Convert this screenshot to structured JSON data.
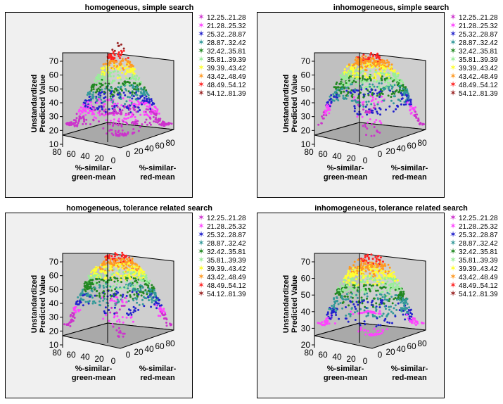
{
  "legend_colors": [
    "#cc33cc",
    "#ff44ff",
    "#2222cc",
    "#339999",
    "#228822",
    "#99ee99",
    "#ffff33",
    "#ff9922",
    "#ff2222",
    "#992222"
  ],
  "chart_data": [
    {
      "type": "scatter",
      "title": "homogeneous, simple search",
      "zlabel": [
        "Unstandardized",
        "Predicted Value"
      ],
      "xlabel": [
        "%-similar-",
        "green-mean"
      ],
      "ylabel": [
        "%-similar-",
        "red-mean"
      ],
      "z_ticks": [
        "70",
        "60",
        "50",
        "40",
        "30",
        "20",
        "10"
      ],
      "x_ticks": [
        "80",
        "60",
        "40",
        "20",
        "0"
      ],
      "y_ticks": [
        "0",
        "20",
        "40",
        "60",
        "80"
      ],
      "zlim": [
        10,
        70
      ],
      "surface": "peaked",
      "legend": [
        "12.25..21.28",
        "21.28..25.32",
        "25.32..28.87",
        "28.87..32.42",
        "32.42..35.81",
        "35.81..39.39",
        "39.39..43.42",
        "43.42..48.49",
        "48.49..54.12",
        "54.12..81.39"
      ]
    },
    {
      "type": "scatter",
      "title": "inhomogeneous, simple search",
      "zlabel": [
        "Unstandardized",
        "Predicted Value"
      ],
      "xlabel": [
        "%-similar-",
        "green-mean"
      ],
      "ylabel": [
        "%-similar-",
        "red-mean"
      ],
      "z_ticks": [
        "70",
        "60",
        "50",
        "40",
        "30",
        "20",
        "10"
      ],
      "x_ticks": [
        "80",
        "60",
        "40",
        "20",
        "0"
      ],
      "y_ticks": [
        "0",
        "20",
        "40",
        "60",
        "80"
      ],
      "zlim": [
        10,
        70
      ],
      "surface": "dome",
      "legend": [
        "12.25..21.28",
        "21.28..25.32",
        "25.32..28.87",
        "28.87..32.42",
        "32.42..35.81",
        "35.81..39.39",
        "39.39..43.42",
        "43.42..48.49",
        "48.49..54.12",
        "54.12..81.39"
      ]
    },
    {
      "type": "scatter",
      "title": "homogeneous, tolerance related search",
      "zlabel": [
        "Unstandardized",
        "Predicted Value"
      ],
      "xlabel": [
        "%-similar-",
        "green-mean"
      ],
      "ylabel": [
        "%-similar-",
        "red-mean"
      ],
      "z_ticks": [
        "70",
        "60",
        "50",
        "40",
        "30",
        "20",
        "10"
      ],
      "x_ticks": [
        "80",
        "60",
        "40",
        "20",
        "0"
      ],
      "y_ticks": [
        "0",
        "20",
        "40",
        "60",
        "80"
      ],
      "zlim": [
        10,
        70
      ],
      "surface": "dome",
      "legend": [
        "12.25..21.28",
        "21.28..25.32",
        "25.32..28.87",
        "28.87..32.42",
        "32.42..35.81",
        "35.81..39.39",
        "39.39..43.42",
        "43.42..48.49",
        "48.49..54.12",
        "54.12..81.39"
      ]
    },
    {
      "type": "scatter",
      "title": "inhomogeneous, tolerance related search",
      "zlabel": [
        "Unstandardized",
        "Predicted Value"
      ],
      "xlabel": [
        "%-similar-",
        "green-mean"
      ],
      "ylabel": [
        "%-similar-",
        "red-mean"
      ],
      "z_ticks": [
        "70",
        "60",
        "50",
        "40",
        "30",
        "20"
      ],
      "x_ticks": [
        "80",
        "60",
        "40",
        "20",
        "0"
      ],
      "y_ticks": [
        "0",
        "20",
        "40",
        "60",
        "80"
      ],
      "zlim": [
        20,
        70
      ],
      "surface": "dome",
      "legend": [
        "12.25..21.28",
        "21.28..25.32",
        "25.32..28.87",
        "28.87..32.42",
        "32.42..35.81",
        "35.81..39.39",
        "39.39..43.42",
        "43.42..48.49",
        "48.49..54.12",
        "54.12..81.39"
      ]
    }
  ]
}
